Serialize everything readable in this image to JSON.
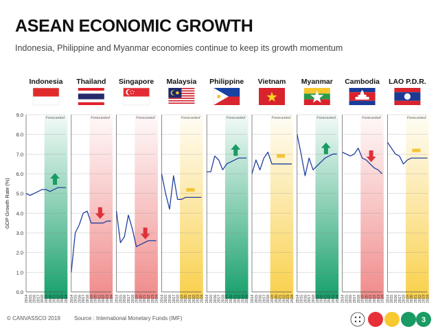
{
  "header": {
    "title": "ASEAN ECONOMIC GROWTH",
    "subtitle": "Indonesia, Philippine and Myanmar economies continue to keep its growth momentum"
  },
  "footer": {
    "copyright": "© CANVASSCO 2019",
    "source": "Source : International Monetary Funds (IMF)",
    "page_number": "3"
  },
  "colors": {
    "line": "#1f3f9e",
    "up_arrow": "#1a9b63",
    "down_arrow": "#e0313b",
    "flat_marker": "#f5c432",
    "green_band": "#15a06a",
    "red_band": "#f08a8a",
    "yellow_band": "#f9d04a",
    "footer_dot_red": "#e8303a",
    "footer_dot_yellow": "#f7c830",
    "footer_dot_green": "#1a9b63"
  },
  "chart_data": {
    "type": "line",
    "ylabel": "GDP Growth Rate (%)",
    "ylim": [
      0,
      9
    ],
    "yticks": [
      "0.0",
      "1.0",
      "2.0",
      "3.0",
      "4.0",
      "5.0",
      "6.0",
      "7.0",
      "8.0",
      "9.0"
    ],
    "grid": true,
    "forecast_label": "Forecasted",
    "forecast_start_year": "2019",
    "x": [
      "2014",
      "2015",
      "2016",
      "2017",
      "2018",
      "2019",
      "2020",
      "2021",
      "2022",
      "2023",
      "2024"
    ],
    "series": [
      {
        "name": "Indonesia",
        "flag": "indonesia",
        "trend": "up",
        "band": "green",
        "values": [
          5.0,
          4.9,
          5.0,
          5.1,
          5.2,
          5.2,
          5.1,
          5.2,
          5.3,
          5.3,
          5.3
        ]
      },
      {
        "name": "Thailand",
        "flag": "thailand",
        "trend": "down",
        "band": "red",
        "values": [
          1.0,
          3.0,
          3.4,
          4.0,
          4.1,
          3.5,
          3.5,
          3.5,
          3.5,
          3.6,
          3.6
        ]
      },
      {
        "name": "Singapore",
        "flag": "singapore",
        "trend": "down",
        "band": "red",
        "values": [
          4.1,
          2.5,
          2.8,
          3.9,
          3.2,
          2.3,
          2.4,
          2.5,
          2.6,
          2.6,
          2.6
        ]
      },
      {
        "name": "Malaysia",
        "flag": "malaysia",
        "trend": "flat",
        "band": "yellow",
        "values": [
          6.0,
          5.0,
          4.2,
          5.9,
          4.7,
          4.7,
          4.8,
          4.8,
          4.8,
          4.8,
          4.8
        ]
      },
      {
        "name": "Philippine",
        "flag": "philippine",
        "trend": "up",
        "band": "green",
        "values": [
          6.1,
          6.1,
          6.9,
          6.7,
          6.2,
          6.5,
          6.6,
          6.7,
          6.8,
          6.8,
          6.8
        ]
      },
      {
        "name": "Vietnam",
        "flag": "vietnam",
        "trend": "flat",
        "band": "yellow",
        "values": [
          6.0,
          6.7,
          6.2,
          6.8,
          7.1,
          6.5,
          6.5,
          6.5,
          6.5,
          6.5,
          6.5
        ]
      },
      {
        "name": "Myanmar",
        "flag": "myanmar",
        "trend": "up",
        "band": "green",
        "values": [
          8.0,
          7.0,
          5.9,
          6.8,
          6.2,
          6.4,
          6.6,
          6.8,
          6.9,
          7.0,
          7.0
        ]
      },
      {
        "name": "Cambodia",
        "flag": "cambodia",
        "trend": "down",
        "band": "red",
        "values": [
          7.1,
          7.0,
          6.9,
          7.0,
          7.3,
          6.8,
          6.7,
          6.5,
          6.3,
          6.2,
          6.0
        ]
      },
      {
        "name": "LAO P.D.R.",
        "flag": "laos",
        "trend": "flat",
        "band": "yellow",
        "values": [
          7.6,
          7.3,
          7.0,
          6.9,
          6.5,
          6.7,
          6.8,
          6.8,
          6.8,
          6.8,
          6.8
        ]
      }
    ]
  }
}
